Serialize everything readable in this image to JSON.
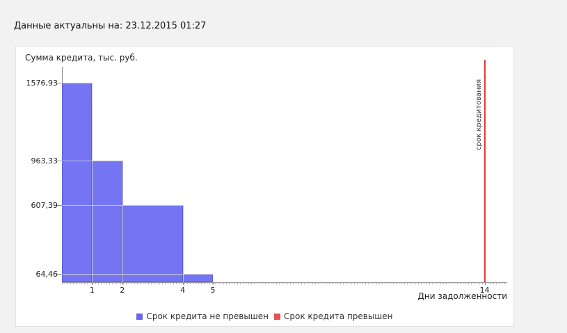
{
  "header": {
    "updated_text": "Данные актуальны на: 23.12.2015 01:27"
  },
  "chart_data": {
    "type": "bar",
    "title": "",
    "ylabel": "Сумма кредита, тыс. руб.",
    "xlabel": "Дни задолженности",
    "xlim": [
      0,
      14.75
    ],
    "ylim": [
      0,
      1700
    ],
    "grid": "value leader lines only",
    "legend_position": "bottom-center",
    "bars": [
      {
        "x_start": 0,
        "x_end": 1,
        "value": 1576.93,
        "label": "1576,93"
      },
      {
        "x_start": 1,
        "x_end": 2,
        "value": 963.33,
        "label": "963,33"
      },
      {
        "x_start": 2,
        "x_end": 4,
        "value": 607.39,
        "label": "607,39"
      },
      {
        "x_start": 4,
        "x_end": 5,
        "value": 64.46,
        "label": "64,46"
      }
    ],
    "x_ticks": [
      1,
      2,
      4,
      5,
      14
    ],
    "y_tick_labels": [
      "1576,93",
      "963,33",
      "607,39",
      "64,46"
    ],
    "reference_line": {
      "x": 14,
      "label": "срок кредитования",
      "color": "#e43a3a"
    },
    "legend": [
      {
        "label": "Срок кредита не превышен",
        "color": "#6666e6"
      },
      {
        "label": "Срок кредита превышен",
        "color": "#e85252"
      }
    ],
    "bar_color": "#7575f3",
    "bar_border_color": "#5d5dd8"
  }
}
